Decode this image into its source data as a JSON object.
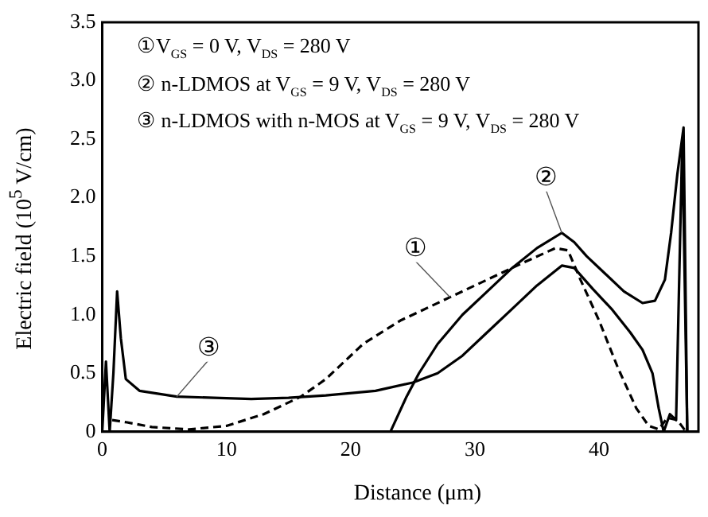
{
  "chart_data": {
    "type": "line",
    "xlabel": "Distance (μm)",
    "ylabel": "Electric field (10$^{5}$ V/cm)",
    "xlim": [
      0,
      48
    ],
    "xticks": [
      0,
      10,
      20,
      30,
      40
    ],
    "ylim": [
      0,
      3.5
    ],
    "yticks": [
      0,
      0.5,
      {
        "value": 1,
        "label": "1.0"
      },
      1.5,
      {
        "value": 2,
        "label": "2.0"
      },
      2.5,
      {
        "value": 3,
        "label": "3.0"
      },
      3.5
    ],
    "grid": false,
    "legend": false,
    "marker": "none",
    "annotations": [
      "①V$_{GS}$ = 0 V, V$_{DS}$ = 280 V",
      "② n-LDMOS at V$_{GS}$ = 9 V, V$_{DS}$ = 280 V",
      "③ n-LDMOS with n-MOS at V$_{GS}$ = 9 V, V$_{DS}$ = 280 V"
    ],
    "series": [
      {
        "name": "①",
        "color": "#000000",
        "line_style": "dashed",
        "x": [
          0.8,
          2,
          4,
          7,
          10,
          13,
          16,
          18,
          21,
          24,
          28,
          31,
          34,
          36.5,
          37.5,
          38.5,
          40,
          41.5,
          43,
          44,
          44.8,
          45.5,
          46.3,
          47
        ],
        "values": [
          0.1,
          0.08,
          0.04,
          0.02,
          0.05,
          0.15,
          0.3,
          0.45,
          0.75,
          0.95,
          1.15,
          1.3,
          1.45,
          1.57,
          1.55,
          1.3,
          0.95,
          0.55,
          0.2,
          0.05,
          0.02,
          0.12,
          0.1,
          0
        ]
      },
      {
        "name": "②",
        "color": "#000000",
        "line_style": "solid",
        "x": [
          23.2,
          24.5,
          25.5,
          27,
          29,
          31,
          33,
          35,
          37,
          38,
          39,
          40.5,
          42,
          43.5,
          44.5,
          45.3,
          45.8,
          46.3,
          46.8,
          47.1
        ],
        "values": [
          0,
          0.3,
          0.5,
          0.75,
          1.0,
          1.2,
          1.4,
          1.57,
          1.7,
          1.62,
          1.5,
          1.35,
          1.2,
          1.1,
          1.12,
          1.3,
          1.7,
          2.2,
          2.6,
          0
        ]
      },
      {
        "name": "③",
        "color": "#000000",
        "line_style": "solid",
        "x": [
          0,
          0.3,
          0.6,
          0.9,
          1.2,
          1.5,
          1.9,
          3,
          6,
          9,
          12,
          15,
          18,
          22,
          25,
          27,
          29,
          31,
          33,
          35,
          37,
          38,
          39.5,
          41,
          42.5,
          43.5,
          44.3,
          44.8,
          45.2,
          45.7,
          46.2,
          46.7,
          47.1
        ],
        "values": [
          0,
          0.6,
          0,
          0.5,
          1.2,
          0.8,
          0.45,
          0.35,
          0.3,
          0.29,
          0.28,
          0.29,
          0.31,
          0.35,
          0.42,
          0.5,
          0.65,
          0.85,
          1.05,
          1.25,
          1.42,
          1.4,
          1.22,
          1.05,
          0.85,
          0.7,
          0.5,
          0.2,
          0,
          0.15,
          0.1,
          2.5,
          0
        ]
      }
    ]
  }
}
